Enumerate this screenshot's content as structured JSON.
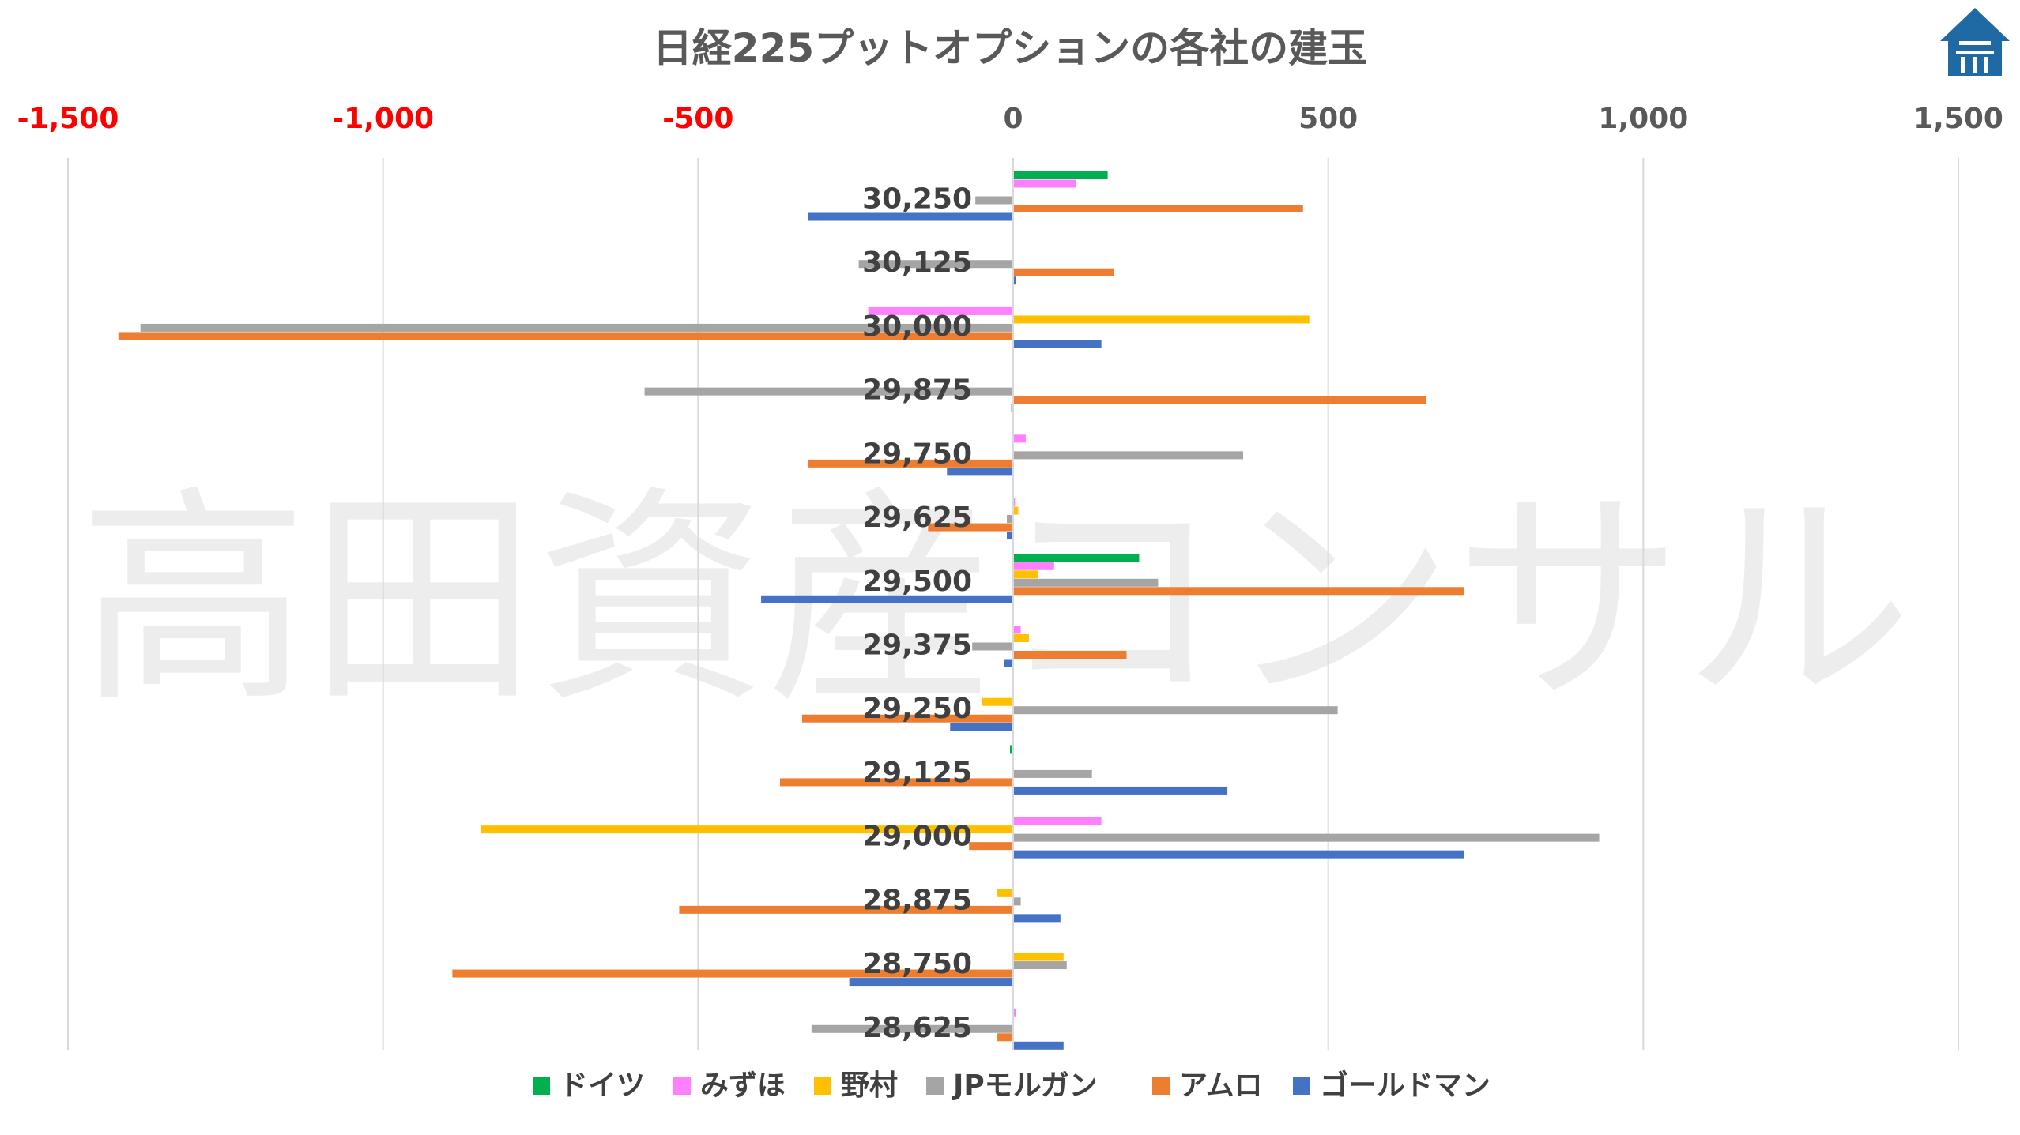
{
  "watermark": "高田資産コンサル",
  "logo": {
    "name": "house-logo",
    "color": "#1f6aa5"
  },
  "chart_data": {
    "type": "bar",
    "orientation": "horizontal",
    "title": "日経225プットオプションの各社の建玉",
    "xlim": [
      -1500,
      1500
    ],
    "xticks": [
      -1500,
      -1000,
      -500,
      0,
      500,
      1000,
      1500
    ],
    "xtick_labels": [
      "-1,500",
      "-1,000",
      "-500",
      "0",
      "500",
      "1,000",
      "1,500"
    ],
    "negative_tick_color": "#ff0000",
    "positive_tick_color": "#595959",
    "grid": "vertical",
    "legend_position": "bottom",
    "categories": [
      "30,250",
      "30,125",
      "30,000",
      "29,875",
      "29,750",
      "29,625",
      "29,500",
      "29,375",
      "29,250",
      "29,125",
      "29,000",
      "28,875",
      "28,750",
      "28,625"
    ],
    "series": [
      {
        "name": "ドイツ",
        "color": "#00b050",
        "values": [
          150,
          0,
          0,
          0,
          0,
          0,
          200,
          0,
          0,
          -5,
          0,
          0,
          0,
          0
        ]
      },
      {
        "name": "みずほ",
        "color": "#ff80ff",
        "values": [
          100,
          0,
          -230,
          0,
          20,
          3,
          65,
          12,
          0,
          0,
          140,
          0,
          0,
          5
        ]
      },
      {
        "name": "野村",
        "color": "#ffc000",
        "values": [
          0,
          0,
          470,
          0,
          0,
          8,
          40,
          25,
          -50,
          0,
          -845,
          -25,
          80,
          0
        ]
      },
      {
        "name": "JPモルガン",
        "color": "#a5a5a5",
        "values": [
          -60,
          -245,
          -1385,
          -585,
          365,
          -10,
          230,
          -65,
          515,
          125,
          930,
          12,
          85,
          -320
        ]
      },
      {
        "name": "アムロ",
        "color": "#ed7d31",
        "values": [
          460,
          160,
          -1420,
          655,
          -325,
          -135,
          715,
          180,
          -335,
          -370,
          -70,
          -530,
          -890,
          -25
        ]
      },
      {
        "name": "ゴールドマン",
        "color": "#4472c4",
        "values": [
          -325,
          5,
          140,
          -3,
          -105,
          -10,
          -400,
          -15,
          -100,
          340,
          715,
          75,
          -260,
          80
        ]
      }
    ]
  }
}
